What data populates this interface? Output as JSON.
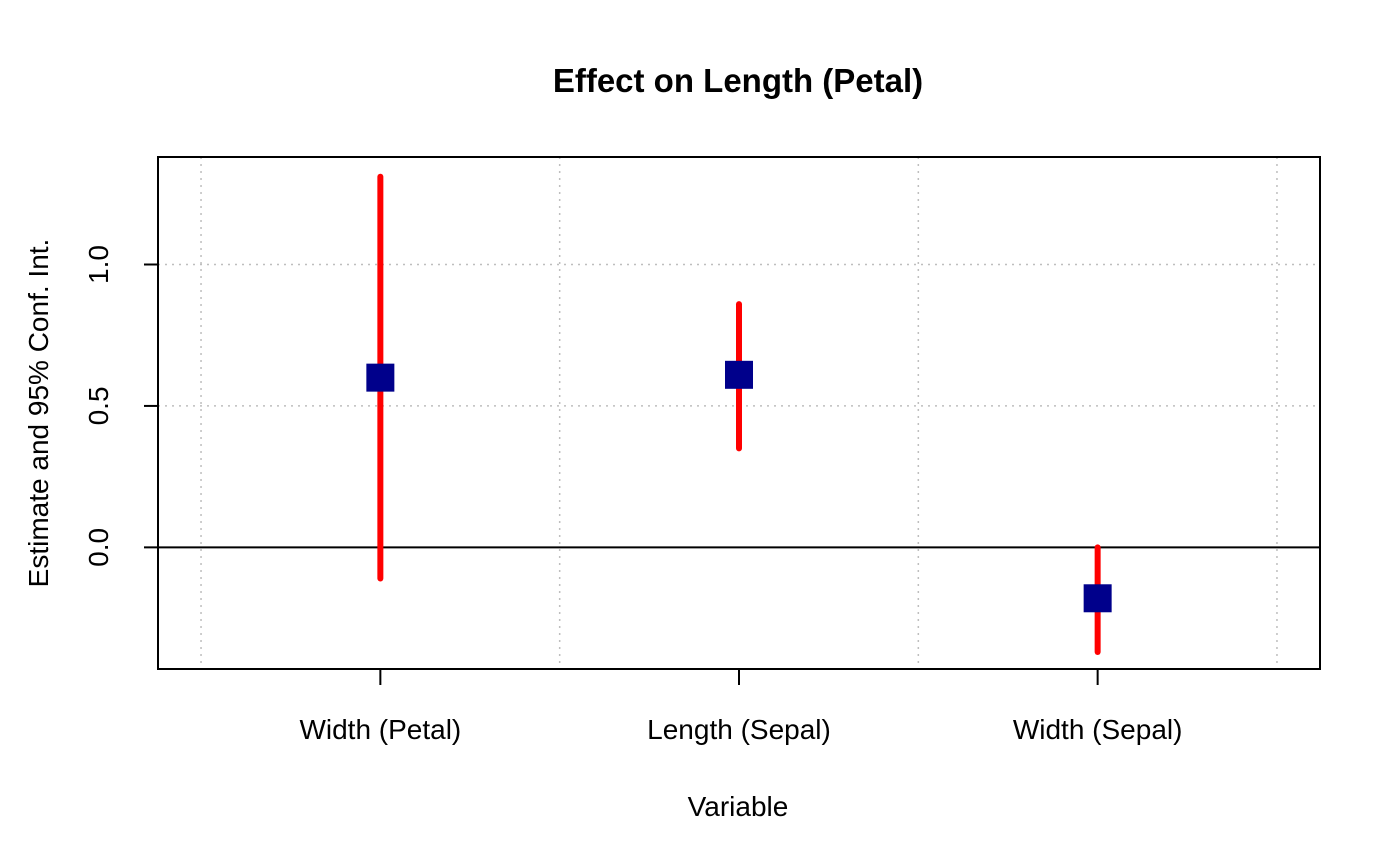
{
  "chart_data": {
    "type": "scatter",
    "title": "Effect on Length (Petal)",
    "xlabel": "Variable",
    "ylabel": "Estimate and 95% Conf. Int.",
    "categories": [
      "Width (Petal)",
      "Length (Sepal)",
      "Width (Sepal)"
    ],
    "estimates": [
      0.6,
      0.61,
      -0.18
    ],
    "ci_lower": [
      -0.11,
      0.35,
      -0.37
    ],
    "ci_upper": [
      1.31,
      0.86,
      0.0
    ],
    "ylim": [
      -0.43,
      1.38
    ],
    "xlim": [
      0.38,
      3.62
    ],
    "yticks": [
      0.0,
      0.5,
      1.0
    ],
    "ytick_labels": [
      "0.0",
      "0.5",
      "1.0"
    ],
    "x_gridlines": [
      0.5,
      1.5,
      2.5,
      3.5
    ],
    "reference_line": 0,
    "grid": true,
    "colors": {
      "ci_bar": "#ff0000",
      "estimate_marker": "#00008b",
      "grid": "#bebebe",
      "reference": "#000000"
    }
  }
}
